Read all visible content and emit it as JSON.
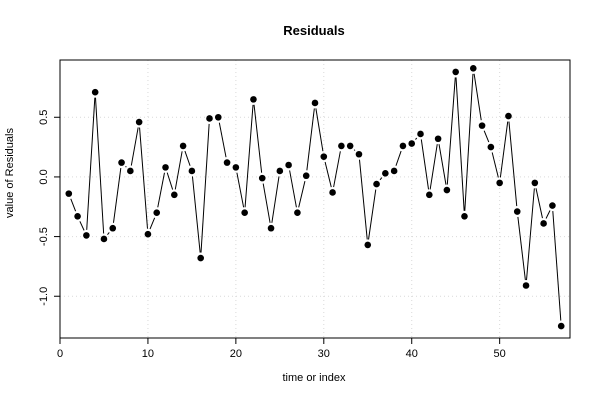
{
  "chart_data": {
    "type": "line",
    "title": "Residuals",
    "xlabel": "time or index",
    "ylabel": "value of Residuals",
    "xlim": [
      0,
      58
    ],
    "ylim": [
      -1.35,
      0.98
    ],
    "x_ticks": [
      0,
      10,
      20,
      30,
      40,
      50
    ],
    "y_ticks": [
      -1.0,
      -0.5,
      0.0,
      0.5
    ],
    "x_tick_labels": [
      "0",
      "10",
      "20",
      "30",
      "40",
      "50"
    ],
    "y_tick_labels": [
      "-1.0",
      "-0.5",
      "0.0",
      "0.5"
    ],
    "grid": true,
    "line_color": "#000000",
    "point_color": "#000000",
    "grid_color": "#d9d9d9",
    "series": [
      {
        "x": [
          1,
          2,
          3,
          4,
          5,
          6,
          7,
          8,
          9,
          10,
          11,
          12,
          13,
          14,
          15,
          16,
          17,
          18,
          19,
          20,
          21,
          22,
          23,
          24,
          25,
          26,
          27,
          28,
          29,
          30,
          31,
          32,
          33,
          34,
          35,
          36,
          37,
          38,
          39,
          40,
          41,
          42,
          43,
          44,
          45,
          46,
          47,
          48,
          49,
          50,
          51,
          52,
          53,
          54,
          55,
          56,
          57
        ],
        "values": [
          -0.14,
          -0.33,
          -0.49,
          0.71,
          -0.52,
          -0.43,
          0.12,
          0.05,
          0.46,
          -0.48,
          -0.3,
          0.08,
          -0.15,
          0.26,
          0.05,
          -0.68,
          0.49,
          0.5,
          0.12,
          0.08,
          -0.3,
          0.65,
          -0.01,
          -0.43,
          0.05,
          0.1,
          -0.3,
          0.01,
          0.62,
          0.17,
          -0.13,
          0.26,
          0.26,
          0.19,
          -0.57,
          -0.06,
          0.03,
          0.05,
          0.26,
          0.28,
          0.36,
          -0.15,
          0.32,
          -0.11,
          0.88,
          -0.33,
          0.91,
          0.43,
          0.25,
          -0.05,
          0.51,
          -0.29,
          -0.91,
          -0.05,
          -0.39,
          -0.24,
          -1.25
        ]
      }
    ]
  }
}
